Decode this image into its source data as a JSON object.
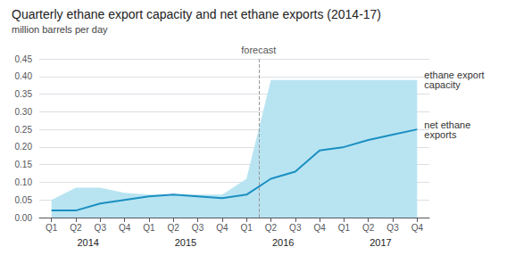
{
  "chart_data": {
    "type": "line",
    "title": "Quarterly ethane export capacity and net ethane exports (2014-17)",
    "subtitle": "million barrels per day",
    "categories": [
      "Q1",
      "Q2",
      "Q3",
      "Q4",
      "Q1",
      "Q2",
      "Q3",
      "Q4",
      "Q1",
      "Q2",
      "Q3",
      "Q4",
      "Q1",
      "Q2",
      "Q3",
      "Q4"
    ],
    "years": [
      "2014",
      "2015",
      "2016",
      "2017"
    ],
    "series": [
      {
        "name": "ethane export\ncapacity",
        "type": "area",
        "color": "#b8e4f2",
        "values": [
          0.05,
          0.085,
          0.085,
          0.07,
          0.065,
          0.065,
          0.065,
          0.065,
          0.11,
          0.39,
          0.39,
          0.39,
          0.39,
          0.39,
          0.39,
          0.39
        ]
      },
      {
        "name": "net ethane\nexports",
        "type": "line",
        "color": "#1a8fc1",
        "values": [
          0.02,
          0.02,
          0.04,
          0.05,
          0.06,
          0.065,
          0.06,
          0.055,
          0.065,
          0.11,
          0.13,
          0.19,
          0.2,
          0.22,
          0.235,
          0.25
        ]
      }
    ],
    "annotations": [
      {
        "text": "forecast",
        "start_index": 9,
        "color": "#999999"
      }
    ],
    "ylim": [
      0.0,
      0.45
    ],
    "yticks": [
      {
        "value": 0.0,
        "label": "0.00"
      },
      {
        "value": 0.05,
        "label": "0.05"
      },
      {
        "value": 0.1,
        "label": "0.10"
      },
      {
        "value": 0.15,
        "label": "0.15"
      },
      {
        "value": 0.2,
        "label": "0.20"
      },
      {
        "value": 0.25,
        "label": "0.25"
      },
      {
        "value": 0.3,
        "label": "0.30"
      },
      {
        "value": 0.35,
        "label": "0.35"
      },
      {
        "value": 0.4,
        "label": "0.40"
      },
      {
        "value": 0.45,
        "label": "0.45"
      }
    ],
    "grid": true
  }
}
